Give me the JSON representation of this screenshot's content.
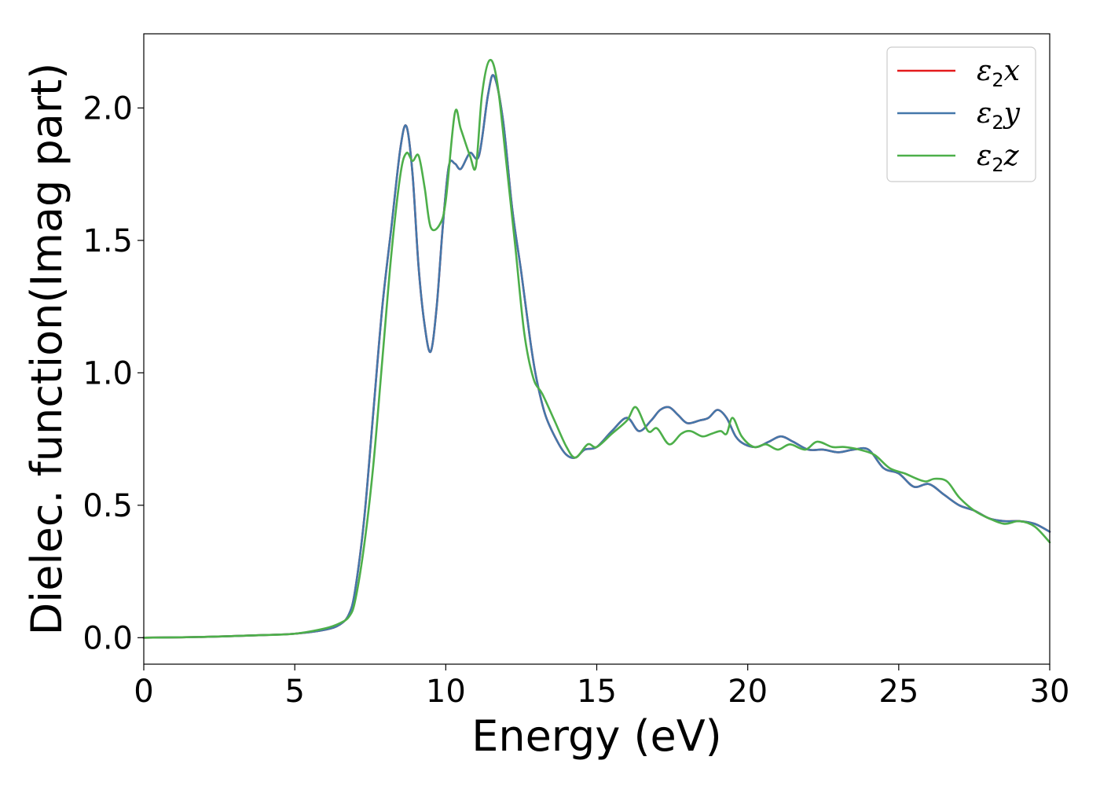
{
  "chart_data": {
    "type": "line",
    "title": "",
    "xlabel": "Energy (eV)",
    "ylabel": "Dielec. function(Imag part)",
    "xlim": [
      0,
      30
    ],
    "ylim": [
      -0.1,
      2.28
    ],
    "xticks": [
      0,
      5,
      10,
      15,
      20,
      25,
      30
    ],
    "xtick_labels": [
      "0",
      "5",
      "10",
      "15",
      "20",
      "25",
      "30"
    ],
    "yticks": [
      0.0,
      0.5,
      1.0,
      1.5,
      2.0
    ],
    "ytick_labels": [
      "0.0",
      "0.5",
      "1.0",
      "1.5",
      "2.0"
    ],
    "grid": false,
    "legend_position": "top-right",
    "colors": {
      "x": "#e41a1c",
      "y": "#4477aa",
      "z": "#4daf4a"
    },
    "series": [
      {
        "name": "ε2x",
        "legend_base": "ε",
        "legend_sub": "2",
        "legend_var": "x",
        "x": [
          0,
          2,
          4,
          5,
          6,
          6.5,
          6.8,
          7.0,
          7.3,
          7.6,
          7.9,
          8.2,
          8.5,
          8.7,
          8.9,
          9.1,
          9.3,
          9.5,
          9.7,
          9.9,
          10.1,
          10.3,
          10.5,
          10.8,
          11.1,
          11.4,
          11.6,
          11.9,
          12.2,
          12.5,
          12.8,
          13.0,
          13.3,
          13.7,
          14.0,
          14.3,
          14.6,
          15.0,
          15.5,
          16.0,
          16.4,
          16.8,
          17.1,
          17.4,
          17.7,
          18.0,
          18.4,
          18.7,
          19.0,
          19.3,
          19.6,
          19.9,
          20.3,
          20.7,
          21.1,
          21.5,
          22.0,
          22.5,
          23.0,
          23.5,
          24.0,
          24.5,
          25.0,
          25.5,
          26.0,
          26.5,
          27.0,
          27.5,
          28.0,
          28.5,
          29.0,
          29.5,
          30.0
        ],
        "y": [
          0.0,
          0.003,
          0.01,
          0.015,
          0.03,
          0.05,
          0.09,
          0.18,
          0.45,
          0.85,
          1.25,
          1.55,
          1.85,
          1.93,
          1.75,
          1.4,
          1.18,
          1.08,
          1.25,
          1.55,
          1.78,
          1.79,
          1.77,
          1.83,
          1.82,
          2.05,
          2.12,
          1.95,
          1.62,
          1.38,
          1.12,
          0.98,
          0.84,
          0.74,
          0.69,
          0.68,
          0.71,
          0.72,
          0.78,
          0.83,
          0.78,
          0.82,
          0.86,
          0.87,
          0.84,
          0.81,
          0.82,
          0.83,
          0.86,
          0.83,
          0.76,
          0.73,
          0.72,
          0.74,
          0.76,
          0.74,
          0.71,
          0.71,
          0.7,
          0.71,
          0.71,
          0.64,
          0.62,
          0.57,
          0.58,
          0.54,
          0.5,
          0.48,
          0.45,
          0.44,
          0.44,
          0.43,
          0.4
        ]
      },
      {
        "name": "ε2y",
        "legend_base": "ε",
        "legend_sub": "2",
        "legend_var": "y",
        "x": [
          0,
          2,
          4,
          5,
          6,
          6.5,
          6.8,
          7.0,
          7.3,
          7.6,
          7.9,
          8.2,
          8.5,
          8.7,
          8.9,
          9.1,
          9.3,
          9.5,
          9.7,
          9.9,
          10.1,
          10.3,
          10.5,
          10.8,
          11.1,
          11.4,
          11.6,
          11.9,
          12.2,
          12.5,
          12.8,
          13.0,
          13.3,
          13.7,
          14.0,
          14.3,
          14.6,
          15.0,
          15.5,
          16.0,
          16.4,
          16.8,
          17.1,
          17.4,
          17.7,
          18.0,
          18.4,
          18.7,
          19.0,
          19.3,
          19.6,
          19.9,
          20.3,
          20.7,
          21.1,
          21.5,
          22.0,
          22.5,
          23.0,
          23.5,
          24.0,
          24.5,
          25.0,
          25.5,
          26.0,
          26.5,
          27.0,
          27.5,
          28.0,
          28.5,
          29.0,
          29.5,
          30.0
        ],
        "y": [
          0.0,
          0.003,
          0.01,
          0.015,
          0.03,
          0.05,
          0.09,
          0.18,
          0.45,
          0.85,
          1.25,
          1.55,
          1.85,
          1.93,
          1.75,
          1.4,
          1.18,
          1.08,
          1.25,
          1.55,
          1.78,
          1.79,
          1.77,
          1.83,
          1.82,
          2.05,
          2.12,
          1.95,
          1.62,
          1.38,
          1.12,
          0.98,
          0.84,
          0.74,
          0.69,
          0.68,
          0.71,
          0.72,
          0.78,
          0.83,
          0.78,
          0.82,
          0.86,
          0.87,
          0.84,
          0.81,
          0.82,
          0.83,
          0.86,
          0.83,
          0.76,
          0.73,
          0.72,
          0.74,
          0.76,
          0.74,
          0.71,
          0.71,
          0.7,
          0.71,
          0.71,
          0.64,
          0.62,
          0.57,
          0.58,
          0.54,
          0.5,
          0.48,
          0.45,
          0.44,
          0.44,
          0.43,
          0.4
        ]
      },
      {
        "name": "ε2z",
        "legend_base": "ε",
        "legend_sub": "2",
        "legend_var": "z",
        "x": [
          0,
          2,
          4,
          5,
          6,
          6.5,
          6.8,
          7.0,
          7.3,
          7.6,
          7.9,
          8.2,
          8.5,
          8.7,
          8.9,
          9.1,
          9.3,
          9.5,
          9.8,
          10.0,
          10.3,
          10.5,
          10.8,
          11.0,
          11.2,
          11.45,
          11.7,
          12.0,
          12.3,
          12.6,
          12.9,
          13.2,
          13.6,
          14.0,
          14.3,
          14.7,
          15.0,
          15.5,
          16.0,
          16.3,
          16.7,
          17.0,
          17.4,
          17.8,
          18.1,
          18.5,
          18.8,
          19.1,
          19.3,
          19.5,
          19.8,
          20.2,
          20.6,
          21.0,
          21.4,
          21.9,
          22.3,
          22.8,
          23.2,
          23.7,
          24.2,
          24.7,
          25.2,
          25.6,
          25.9,
          26.2,
          26.6,
          27.0,
          27.5,
          28.0,
          28.5,
          29.0,
          29.5,
          30.0
        ],
        "y": [
          0.0,
          0.003,
          0.01,
          0.015,
          0.035,
          0.055,
          0.08,
          0.14,
          0.35,
          0.65,
          1.05,
          1.45,
          1.75,
          1.83,
          1.8,
          1.82,
          1.7,
          1.55,
          1.56,
          1.65,
          1.98,
          1.92,
          1.82,
          1.78,
          2.05,
          2.18,
          2.1,
          1.8,
          1.48,
          1.15,
          0.98,
          0.92,
          0.82,
          0.72,
          0.68,
          0.73,
          0.72,
          0.77,
          0.82,
          0.87,
          0.78,
          0.79,
          0.73,
          0.77,
          0.78,
          0.76,
          0.77,
          0.78,
          0.77,
          0.83,
          0.76,
          0.72,
          0.73,
          0.71,
          0.73,
          0.71,
          0.74,
          0.72,
          0.72,
          0.71,
          0.69,
          0.64,
          0.62,
          0.6,
          0.59,
          0.6,
          0.59,
          0.53,
          0.48,
          0.45,
          0.43,
          0.44,
          0.42,
          0.36
        ]
      }
    ]
  }
}
